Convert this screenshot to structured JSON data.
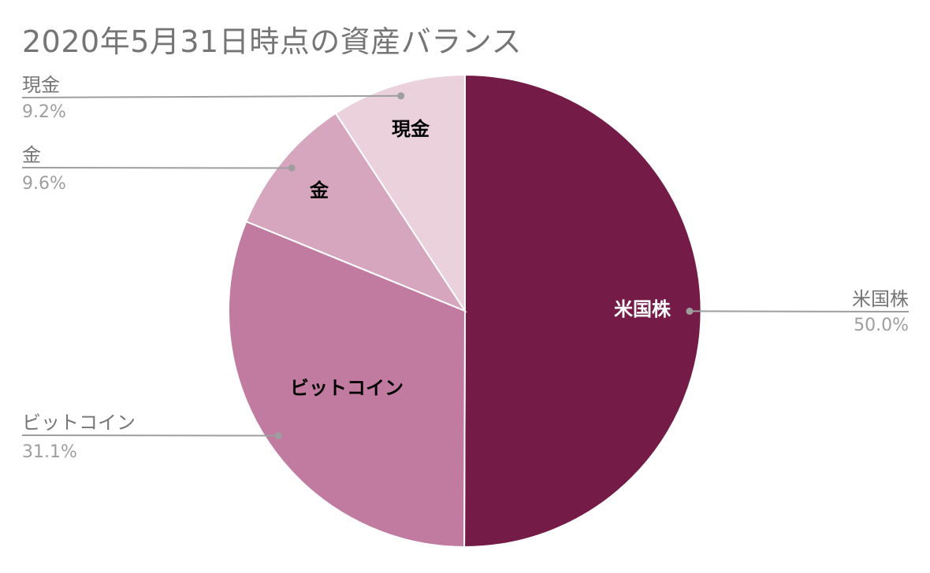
{
  "chart_data": {
    "type": "pie",
    "title": "2020年5月31日時点の資産バランス",
    "slices": [
      {
        "label": "米国株",
        "value": 50.0,
        "percent_label": "50.0%",
        "color": "#741b47",
        "inner_text_color": "#ffffff"
      },
      {
        "label": "ビットコイン",
        "value": 31.1,
        "percent_label": "31.1%",
        "color": "#c27ba0",
        "inner_text_color": "#000000"
      },
      {
        "label": "金",
        "value": 9.6,
        "percent_label": "9.6%",
        "color": "#d5a6bd",
        "inner_text_color": "#000000"
      },
      {
        "label": "現金",
        "value": 9.2,
        "percent_label": "9.2%",
        "color": "#ead1dc",
        "inner_text_color": "#000000"
      }
    ],
    "start_angle": "12 o'clock",
    "direction": "clockwise",
    "legend": "none",
    "label_style": "callout lines with label and percent"
  }
}
